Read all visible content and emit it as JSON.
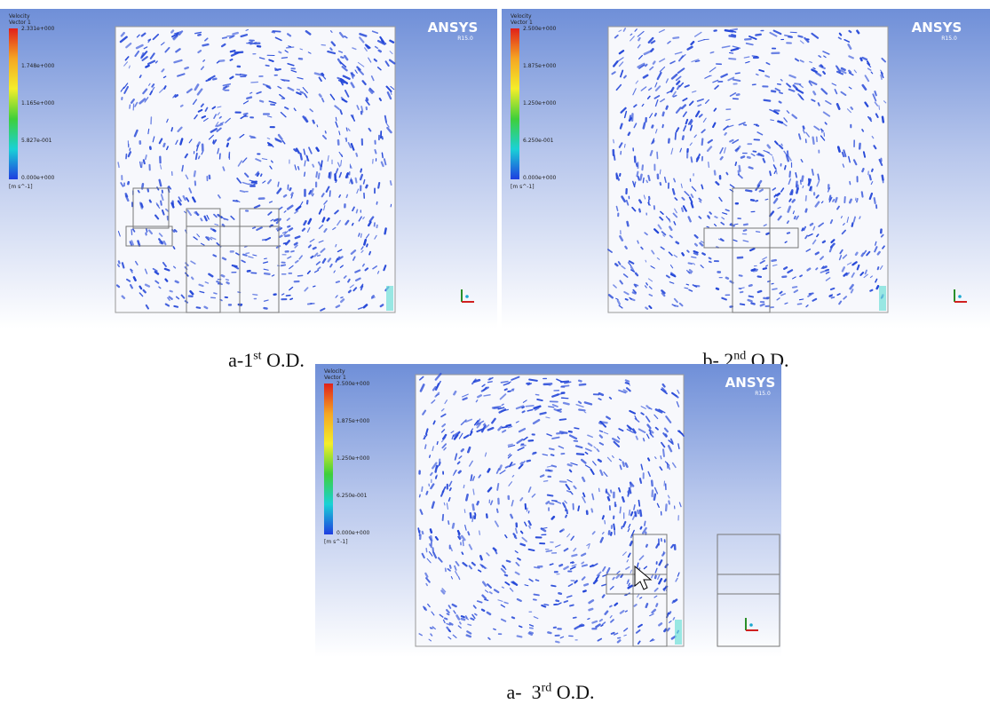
{
  "panels": [
    {
      "legend": {
        "title": "Velocity",
        "subtitle": "Vector 1",
        "ticks": [
          "2.331e+000",
          "1.748e+000",
          "1.165e+000",
          "5.827e-001",
          "0.000e+000"
        ],
        "unit": "[m s^-1]"
      },
      "logo": "ANSYS",
      "version": "R15.0",
      "caption": {
        "prefix": "a-1",
        "sup": "st",
        "suffix": " O.D."
      }
    },
    {
      "legend": {
        "title": "Velocity",
        "subtitle": "Vector 1",
        "ticks": [
          "2.500e+000",
          "1.875e+000",
          "1.250e+000",
          "6.250e-001",
          "0.000e+000"
        ],
        "unit": "[m s^-1]"
      },
      "logo": "ANSYS",
      "version": "R15.0",
      "caption": {
        "prefix": "b- 2",
        "sup": "nd",
        "suffix": " O.D."
      }
    },
    {
      "legend": {
        "title": "Velocity",
        "subtitle": "Vector 1",
        "ticks": [
          "2.500e+000",
          "1.875e+000",
          "1.250e+000",
          "6.250e-001",
          "0.000e+000"
        ],
        "unit": "[m s^-1]"
      },
      "logo": "ANSYS",
      "version": "R15.0",
      "caption": {
        "prefix": "a-  3",
        "sup": "rd",
        "suffix": " O.D."
      }
    }
  ]
}
